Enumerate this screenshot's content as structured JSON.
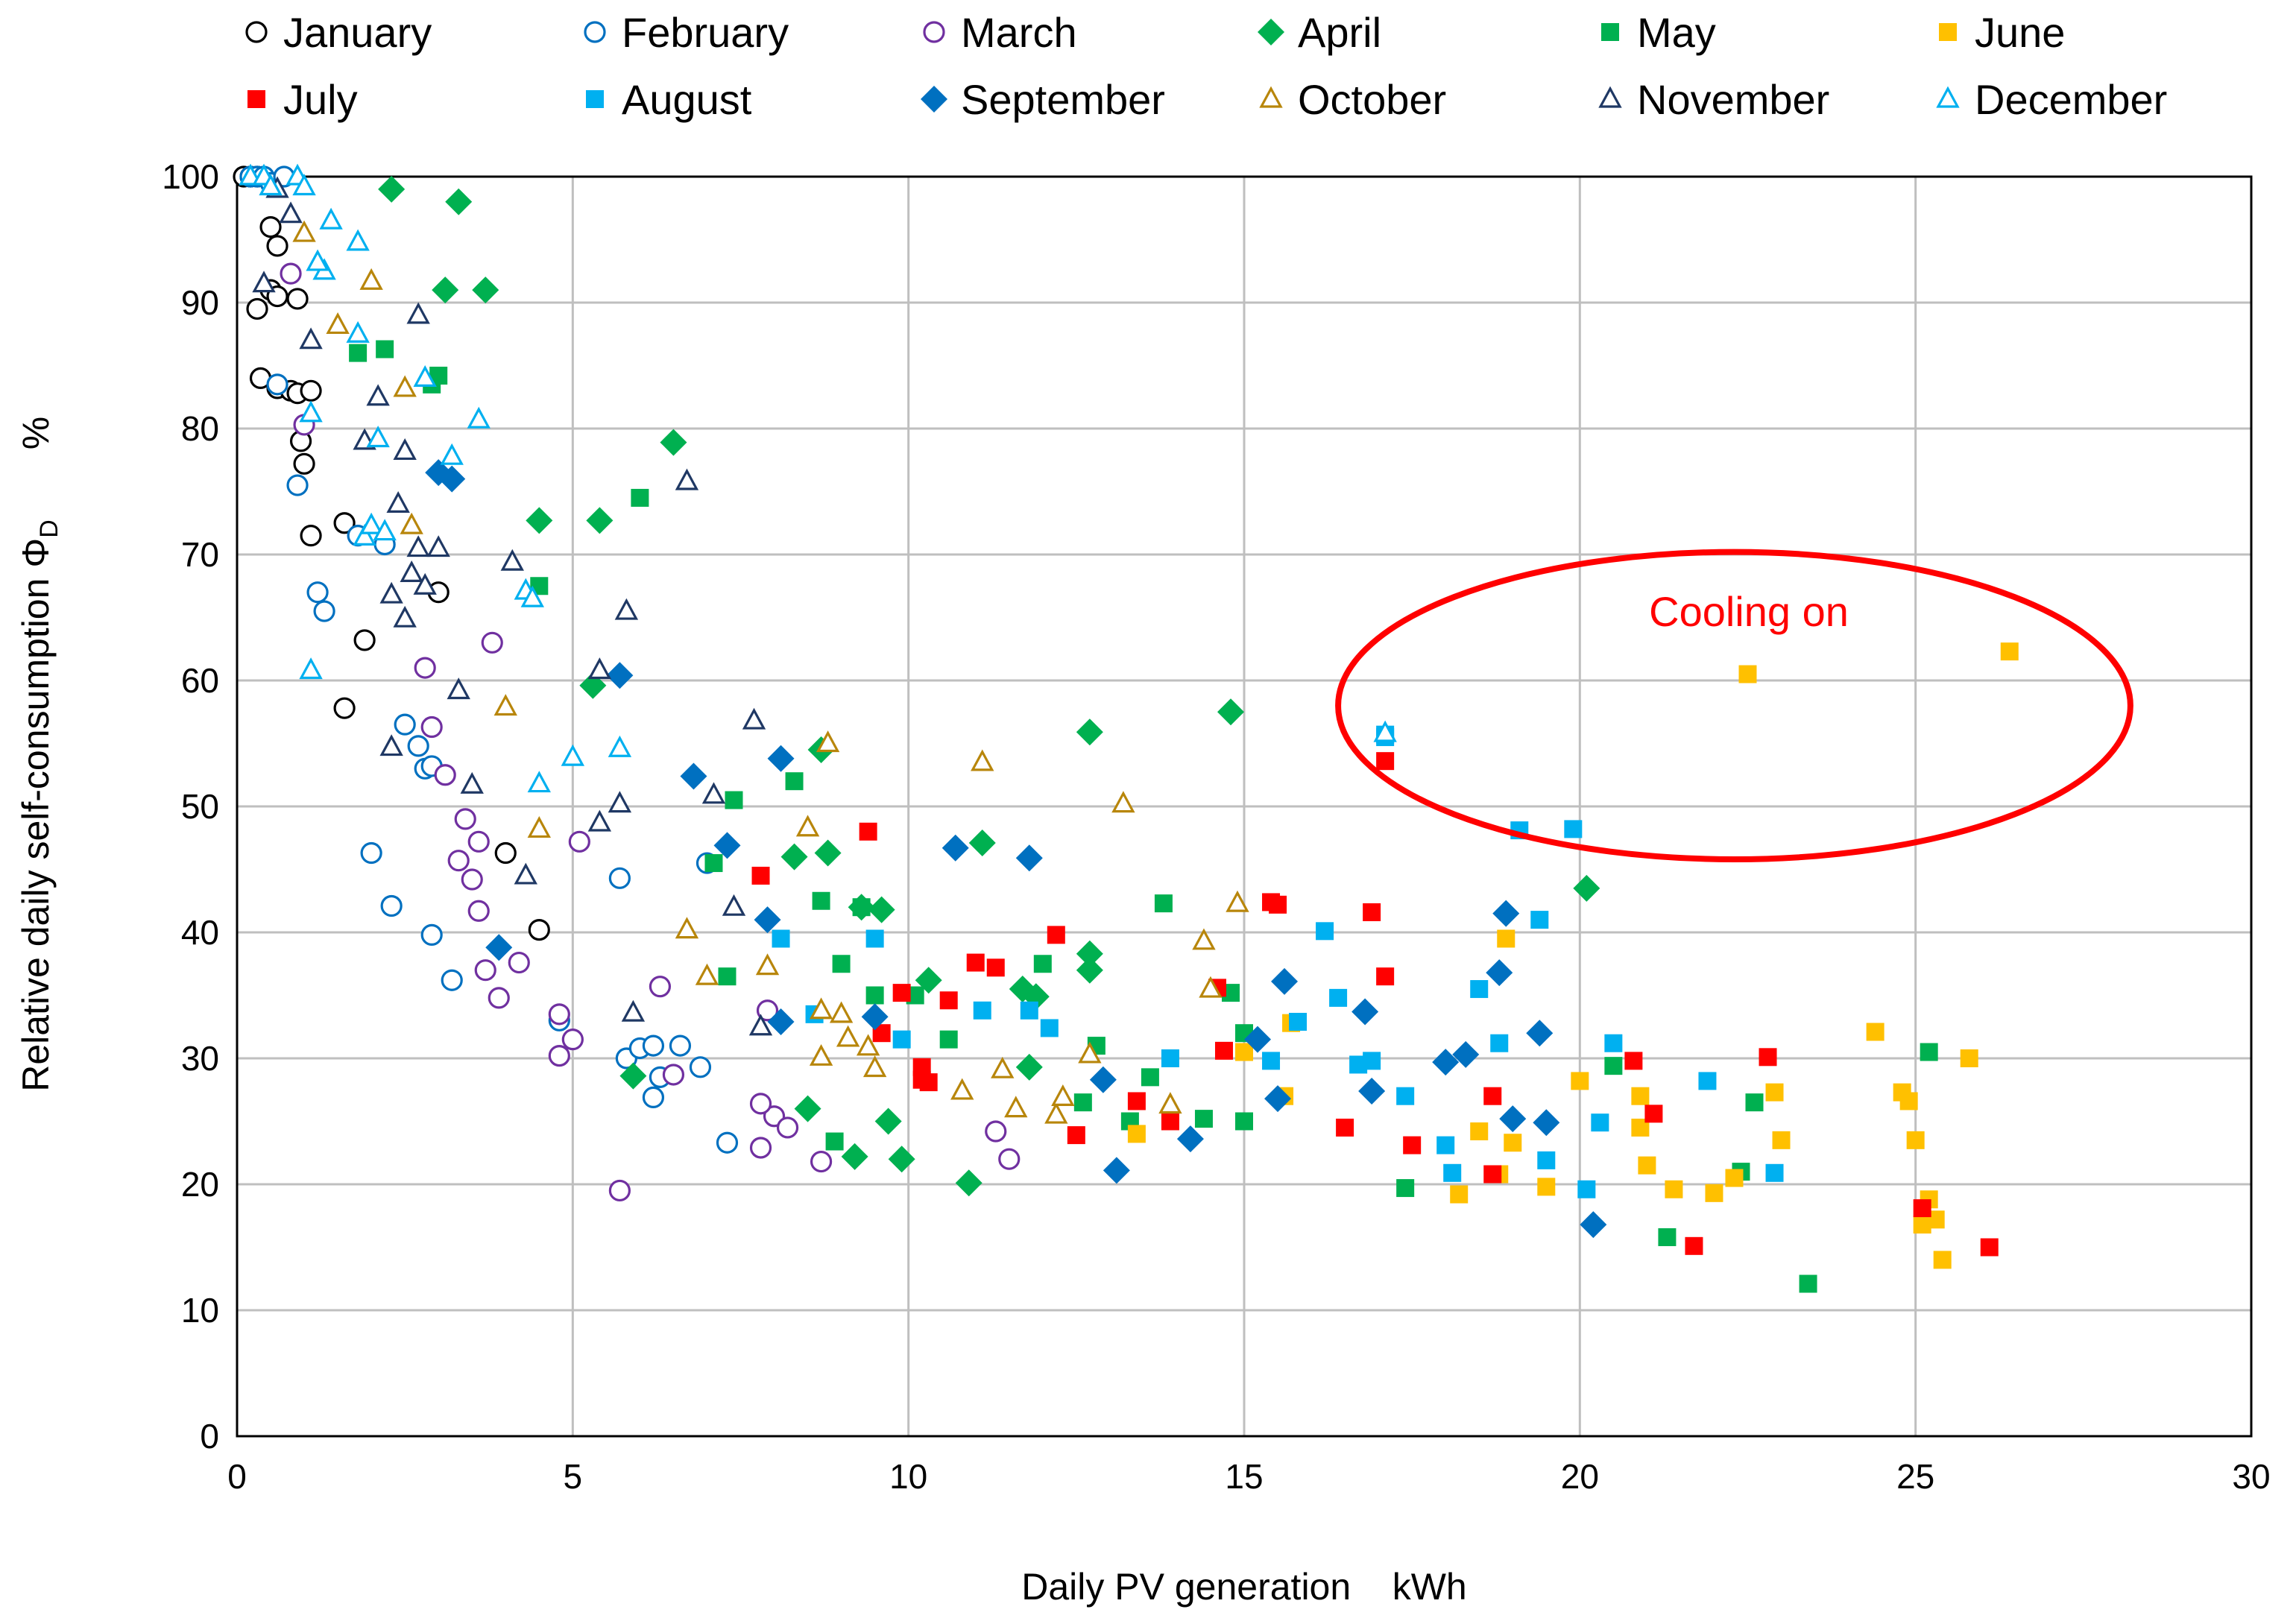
{
  "chart_data": {
    "type": "scatter",
    "title": "",
    "xlabel": "Daily PV generation    kWh",
    "ylabel_main": "Relative daily self-consumption Φ",
    "ylabel_sub": "D",
    "ylabel_unit": "%",
    "xlim": [
      0,
      30
    ],
    "ylim": [
      0,
      100
    ],
    "x_ticks": [
      0,
      5,
      10,
      15,
      20,
      25,
      30
    ],
    "y_ticks": [
      0,
      10,
      20,
      30,
      40,
      50,
      60,
      70,
      80,
      90,
      100
    ],
    "x_tick_labels": [
      "0",
      "5",
      "10",
      "15",
      "20",
      "25",
      "30"
    ],
    "y_tick_labels": [
      "0",
      "10",
      "20",
      "30",
      "40",
      "50",
      "60",
      "70",
      "80",
      "90",
      "100"
    ],
    "grid": true,
    "legend_position": "top",
    "annotation": {
      "text": "Cooling on",
      "color": "#ff0000",
      "center": [
        22.3,
        58
      ],
      "radii": [
        11.8,
        12.2
      ]
    },
    "series": [
      {
        "name": "January",
        "marker": "circle-open",
        "color": "#000000",
        "x": [
          0.1,
          0.2,
          0.3,
          0.5,
          0.6,
          0.3,
          0.5,
          0.6,
          0.9,
          0.35,
          0.6,
          0.8,
          0.9,
          1.1,
          0.95,
          1.0,
          1.6,
          1.1,
          1.9,
          3.0,
          1.6,
          4.0,
          4.5
        ],
        "y": [
          100,
          100,
          100,
          96,
          94.5,
          89.5,
          91,
          90.5,
          90.3,
          84,
          83.2,
          83,
          82.8,
          83,
          79,
          77.2,
          72.5,
          71.5,
          63.2,
          67,
          57.8,
          46.3,
          40.2
        ]
      },
      {
        "name": "February",
        "marker": "circle-open",
        "color": "#0070c0",
        "x": [
          0.2,
          0.3,
          0.4,
          0.5,
          0.7,
          0.6,
          0.9,
          1.2,
          1.3,
          1.8,
          2.2,
          2.5,
          2.7,
          2.8,
          2.9,
          2.0,
          2.3,
          2.9,
          3.2,
          4.8,
          5.7,
          5.8,
          6.0,
          6.2,
          6.3,
          6.6,
          6.9,
          7.0,
          7.3,
          6.2
        ],
        "y": [
          100,
          100,
          100,
          99.5,
          100,
          83.5,
          75.5,
          67,
          65.5,
          71.5,
          70.8,
          56.5,
          54.8,
          53,
          53.2,
          46.3,
          42.1,
          39.8,
          36.2,
          33,
          44.3,
          30,
          30.8,
          31,
          28.5,
          31,
          29.3,
          45.5,
          23.3,
          26.9
        ]
      },
      {
        "name": "March",
        "marker": "circle-open",
        "color": "#7030a0",
        "x": [
          0.8,
          1.0,
          2.8,
          2.9,
          3.8,
          3.1,
          3.4,
          3.6,
          3.3,
          3.5,
          3.6,
          3.7,
          3.9,
          4.2,
          4.8,
          5.1,
          5.0,
          4.8,
          5.7,
          6.3,
          6.5,
          7.9,
          8.0,
          7.8,
          8.2,
          7.8,
          8.7,
          11.3,
          11.5
        ],
        "y": [
          92.3,
          80.3,
          61,
          56.3,
          63,
          52.5,
          49,
          47.2,
          45.7,
          44.2,
          41.7,
          37,
          34.8,
          37.6,
          33.5,
          47.2,
          31.5,
          30.2,
          19.5,
          35.7,
          28.7,
          33.8,
          25.4,
          22.9,
          24.5,
          26.4,
          21.8,
          24.2,
          22
        ]
      },
      {
        "name": "April",
        "marker": "diamond",
        "color": "#00b050",
        "x": [
          2.3,
          3.3,
          3.1,
          3.7,
          4.5,
          5.4,
          6.5,
          5.3,
          5.9,
          8.7,
          8.8,
          8.3,
          9.3,
          9.6,
          10.3,
          11.1,
          11.7,
          11.9,
          11.8,
          12.7,
          12.7,
          12.7,
          14.8,
          20.1,
          8.5,
          9.2,
          9.7,
          9.9,
          10.9
        ],
        "y": [
          99,
          98,
          91,
          91,
          72.7,
          72.7,
          78.9,
          59.6,
          28.6,
          54.5,
          46.3,
          46,
          42,
          41.8,
          36.2,
          47.1,
          35.5,
          34.9,
          29.3,
          38.3,
          37,
          55.9,
          57.5,
          43.5,
          26,
          22.2,
          25,
          22,
          20.1
        ]
      },
      {
        "name": "May",
        "marker": "square",
        "color": "#00b050",
        "x": [
          1.8,
          2.2,
          2.9,
          3.0,
          4.5,
          6.0,
          7.1,
          7.4,
          7.3,
          8.3,
          8.7,
          9.0,
          9.3,
          9.5,
          10.1,
          10.6,
          12.0,
          12.6,
          12.8,
          13.3,
          13.8,
          14.4,
          14.8,
          15.0,
          17.4,
          20.5,
          21.3,
          22.4,
          22.6,
          23.4,
          25.2,
          8.9,
          13.6,
          15.0
        ],
        "y": [
          86,
          86.3,
          83.5,
          84.2,
          67.5,
          74.5,
          45.5,
          50.5,
          36.5,
          52,
          42.5,
          37.5,
          42,
          35,
          35,
          31.5,
          37.5,
          26.5,
          31,
          25,
          42.3,
          25.2,
          35.2,
          32,
          19.7,
          29.4,
          15.8,
          21,
          26.5,
          12.1,
          30.5,
          23.4,
          28.5,
          25
        ]
      },
      {
        "name": "June",
        "marker": "square",
        "color": "#ffc000",
        "x": [
          13.4,
          15.0,
          15.6,
          15.7,
          18.5,
          18.8,
          18.9,
          19.0,
          19.5,
          20.0,
          20.9,
          20.9,
          21.0,
          21.4,
          22.0,
          22.3,
          22.5,
          22.9,
          23.0,
          24.4,
          24.8,
          24.9,
          25.0,
          25.1,
          25.2,
          25.3,
          25.4,
          25.8,
          26.4,
          18.2
        ],
        "y": [
          24,
          30.5,
          27,
          32.8,
          24.2,
          20.8,
          39.5,
          23.3,
          19.8,
          28.2,
          24.5,
          27,
          21.5,
          19.6,
          19.3,
          20.5,
          60.5,
          27.3,
          23.5,
          32.1,
          27.3,
          26.6,
          23.5,
          16.8,
          18.8,
          17.2,
          14,
          30,
          62.3,
          19.2
        ]
      },
      {
        "name": "July",
        "marker": "square",
        "color": "#ff0000",
        "x": [
          7.8,
          9.4,
          9.6,
          9.9,
          10.2,
          10.2,
          10.3,
          10.6,
          11.0,
          11.3,
          12.2,
          12.5,
          13.4,
          14.6,
          14.7,
          15.4,
          15.5,
          16.5,
          16.9,
          17.1,
          17.5,
          18.7,
          18.7,
          20.8,
          21.1,
          21.7,
          22.8,
          25.1,
          26.1,
          17.1,
          13.9
        ],
        "y": [
          44.5,
          48,
          32,
          35.2,
          28.3,
          29.3,
          28.1,
          34.6,
          37.6,
          37.2,
          39.8,
          23.9,
          26.6,
          35.6,
          30.6,
          42.4,
          42.2,
          24.5,
          41.6,
          36.5,
          23.1,
          27,
          20.8,
          29.8,
          25.6,
          15.1,
          30.1,
          18.1,
          15,
          53.6,
          25
        ]
      },
      {
        "name": "August",
        "marker": "square",
        "color": "#00b0f0",
        "x": [
          8.1,
          8.6,
          9.5,
          9.9,
          11.1,
          11.8,
          12.1,
          13.9,
          15.4,
          15.8,
          16.2,
          16.4,
          16.7,
          16.9,
          17.1,
          17.4,
          18.0,
          18.1,
          18.5,
          18.8,
          19.1,
          19.4,
          19.5,
          19.9,
          20.1,
          20.3,
          20.5,
          21.9,
          22.9,
          17.1
        ],
        "y": [
          39.5,
          33.5,
          39.5,
          31.5,
          33.8,
          33.8,
          32.4,
          30,
          29.8,
          32.9,
          40.1,
          34.8,
          29.5,
          29.8,
          55.5,
          27,
          23.1,
          20.9,
          35.5,
          31.2,
          48.1,
          41,
          21.9,
          48.2,
          19.6,
          24.9,
          31.2,
          28.2,
          20.9,
          55.7
        ]
      },
      {
        "name": "September",
        "marker": "diamond",
        "color": "#0070c0",
        "x": [
          3.0,
          3.2,
          3.9,
          5.7,
          6.8,
          7.3,
          7.9,
          8.1,
          8.1,
          9.5,
          10.7,
          11.8,
          12.9,
          13.1,
          14.2,
          15.2,
          15.5,
          15.6,
          16.8,
          16.9,
          18.0,
          18.3,
          18.8,
          18.9,
          19.0,
          19.4,
          19.5,
          20.2
        ],
        "y": [
          76.5,
          76,
          38.8,
          60.4,
          52.4,
          46.9,
          41,
          53.8,
          32.9,
          33.3,
          46.7,
          45.9,
          28.3,
          21.1,
          23.6,
          31.5,
          26.8,
          36.1,
          33.7,
          27.4,
          29.7,
          30.3,
          36.8,
          41.5,
          25.2,
          32,
          24.9,
          16.8
        ]
      },
      {
        "name": "October",
        "marker": "triangle-open",
        "color": "#b8860b",
        "x": [
          1.0,
          1.5,
          2.0,
          2.5,
          2.6,
          4.0,
          4.5,
          6.7,
          7.0,
          7.9,
          8.5,
          8.7,
          8.8,
          8.7,
          9.0,
          9.1,
          9.4,
          9.5,
          10.8,
          11.1,
          11.4,
          11.6,
          12.2,
          12.3,
          12.7,
          13.2,
          13.9,
          14.4,
          14.5,
          14.9
        ],
        "y": [
          95.5,
          88.2,
          91.7,
          83.2,
          72.3,
          57.9,
          48.2,
          40.2,
          36.5,
          37.3,
          48.3,
          33.8,
          55,
          30.1,
          33.5,
          31.6,
          30.9,
          29.2,
          27.4,
          53.5,
          29.1,
          26,
          25.5,
          26.9,
          30.3,
          50.2,
          26.3,
          39.3,
          35.5,
          42.3
        ]
      },
      {
        "name": "November",
        "marker": "triangle-open",
        "color": "#1f3864",
        "x": [
          0.4,
          0.6,
          0.8,
          1.1,
          1.9,
          2.1,
          2.4,
          2.5,
          2.6,
          2.7,
          2.7,
          2.8,
          3.0,
          3.3,
          3.5,
          2.5,
          2.3,
          2.3,
          4.1,
          4.3,
          5.4,
          5.7,
          5.4,
          5.8,
          5.9,
          6.7,
          7.1,
          7.4,
          7.7,
          7.8
        ],
        "y": [
          91.5,
          99,
          97,
          87,
          79,
          82.5,
          74,
          78.2,
          68.5,
          70.5,
          89,
          67.5,
          70.5,
          59.2,
          51.7,
          64.9,
          66.8,
          54.7,
          69.4,
          44.5,
          60.8,
          50.2,
          48.7,
          65.5,
          33.6,
          75.8,
          50.9,
          42,
          56.8,
          32.5
        ]
      },
      {
        "name": "December",
        "marker": "triangle-open",
        "color": "#00b0f0",
        "x": [
          0.2,
          0.4,
          0.5,
          0.9,
          1.0,
          1.3,
          1.4,
          1.2,
          1.1,
          1.8,
          1.9,
          2.1,
          2.8,
          3.2,
          3.6,
          4.3,
          4.4,
          4.5,
          5.0,
          5.7,
          1.1,
          1.8,
          2.0,
          2.2,
          17.1
        ],
        "y": [
          100,
          100,
          99.2,
          100,
          99.2,
          92.5,
          96.5,
          93.2,
          81.2,
          94.8,
          71.4,
          79.2,
          84,
          77.8,
          80.7,
          67.1,
          66.5,
          51.8,
          53.9,
          54.6,
          60.8,
          87.5,
          72.3,
          71.8,
          55.8
        ]
      }
    ]
  }
}
